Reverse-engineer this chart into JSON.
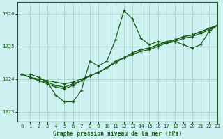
{
  "title": "Graphe pression niveau de la mer (hPa)",
  "bg_color": "#cdf0f0",
  "grid_color": "#b0d8d0",
  "line_color": "#1a5c1a",
  "xlim": [
    -0.5,
    23
  ],
  "ylim": [
    1022.7,
    1026.35
  ],
  "yticks": [
    1023,
    1024,
    1025,
    1026
  ],
  "xticks": [
    0,
    1,
    2,
    3,
    4,
    5,
    6,
    7,
    8,
    9,
    10,
    11,
    12,
    13,
    14,
    15,
    16,
    17,
    18,
    19,
    20,
    21,
    22,
    23
  ],
  "series1": [
    1024.15,
    1024.15,
    1024.05,
    1023.9,
    1023.5,
    1023.3,
    1023.3,
    1023.65,
    1024.55,
    1024.4,
    1024.55,
    1025.2,
    1026.1,
    1025.85,
    1025.25,
    1025.05,
    1025.15,
    1025.1,
    1025.15,
    1025.05,
    1024.95,
    1025.05,
    1025.45,
    1025.65
  ],
  "series2": [
    1024.15,
    1024.05,
    1024.0,
    1023.95,
    1023.9,
    1023.85,
    1023.9,
    1024.0,
    1024.1,
    1024.2,
    1024.35,
    1024.5,
    1024.65,
    1024.75,
    1024.85,
    1024.9,
    1025.0,
    1025.1,
    1025.15,
    1025.25,
    1025.3,
    1025.4,
    1025.5,
    1025.65
  ],
  "series3": [
    1024.15,
    1024.05,
    1023.95,
    1023.9,
    1023.8,
    1023.75,
    1023.85,
    1023.95,
    1024.1,
    1024.2,
    1024.35,
    1024.55,
    1024.65,
    1024.8,
    1024.9,
    1024.95,
    1025.05,
    1025.15,
    1025.2,
    1025.3,
    1025.35,
    1025.45,
    1025.55,
    1025.65
  ],
  "series4": [
    1024.15,
    1024.05,
    1023.95,
    1023.85,
    1023.75,
    1023.7,
    1023.8,
    1023.95,
    1024.1,
    1024.2,
    1024.35,
    1024.5,
    1024.65,
    1024.8,
    1024.9,
    1024.95,
    1025.05,
    1025.1,
    1025.2,
    1025.3,
    1025.35,
    1025.45,
    1025.55,
    1025.65
  ]
}
